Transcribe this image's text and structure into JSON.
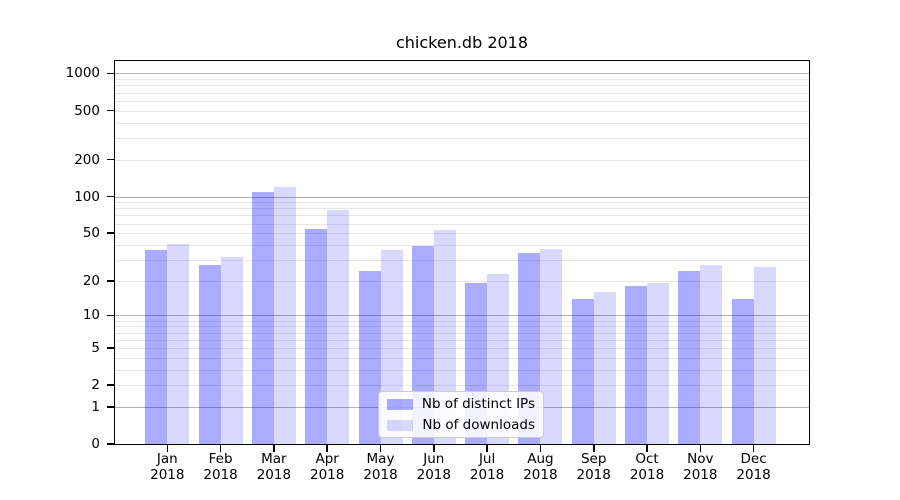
{
  "chart_data": {
    "type": "bar",
    "title": "chicken.db 2018",
    "categories": [
      "Jan",
      "Feb",
      "Mar",
      "Apr",
      "May",
      "Jun",
      "Jul",
      "Aug",
      "Sep",
      "Oct",
      "Nov",
      "Dec"
    ],
    "year": "2018",
    "series": [
      {
        "name": "Nb of distinct IPs",
        "color": "#0000FF54",
        "color_flat": "#aaaaff",
        "values": [
          36,
          27,
          108,
          54,
          24,
          39,
          19,
          34,
          14,
          18,
          24,
          14
        ]
      },
      {
        "name": "Nb of downloads",
        "color": "#0000FF26",
        "color_flat": "#d9d9ff",
        "values": [
          41,
          32,
          120,
          77,
          36,
          53,
          23,
          37,
          16,
          19,
          27,
          26
        ]
      }
    ],
    "yscale": "log1p",
    "ylim": [
      0,
      1300
    ],
    "ytick_values": [
      0,
      1,
      2,
      5,
      10,
      20,
      50,
      100,
      200,
      500,
      1000
    ],
    "grid": "horizontal",
    "grid_major_color": "#b3b3b3",
    "grid_minor_color": "#e7e7e7",
    "legend_position": "lower center"
  }
}
